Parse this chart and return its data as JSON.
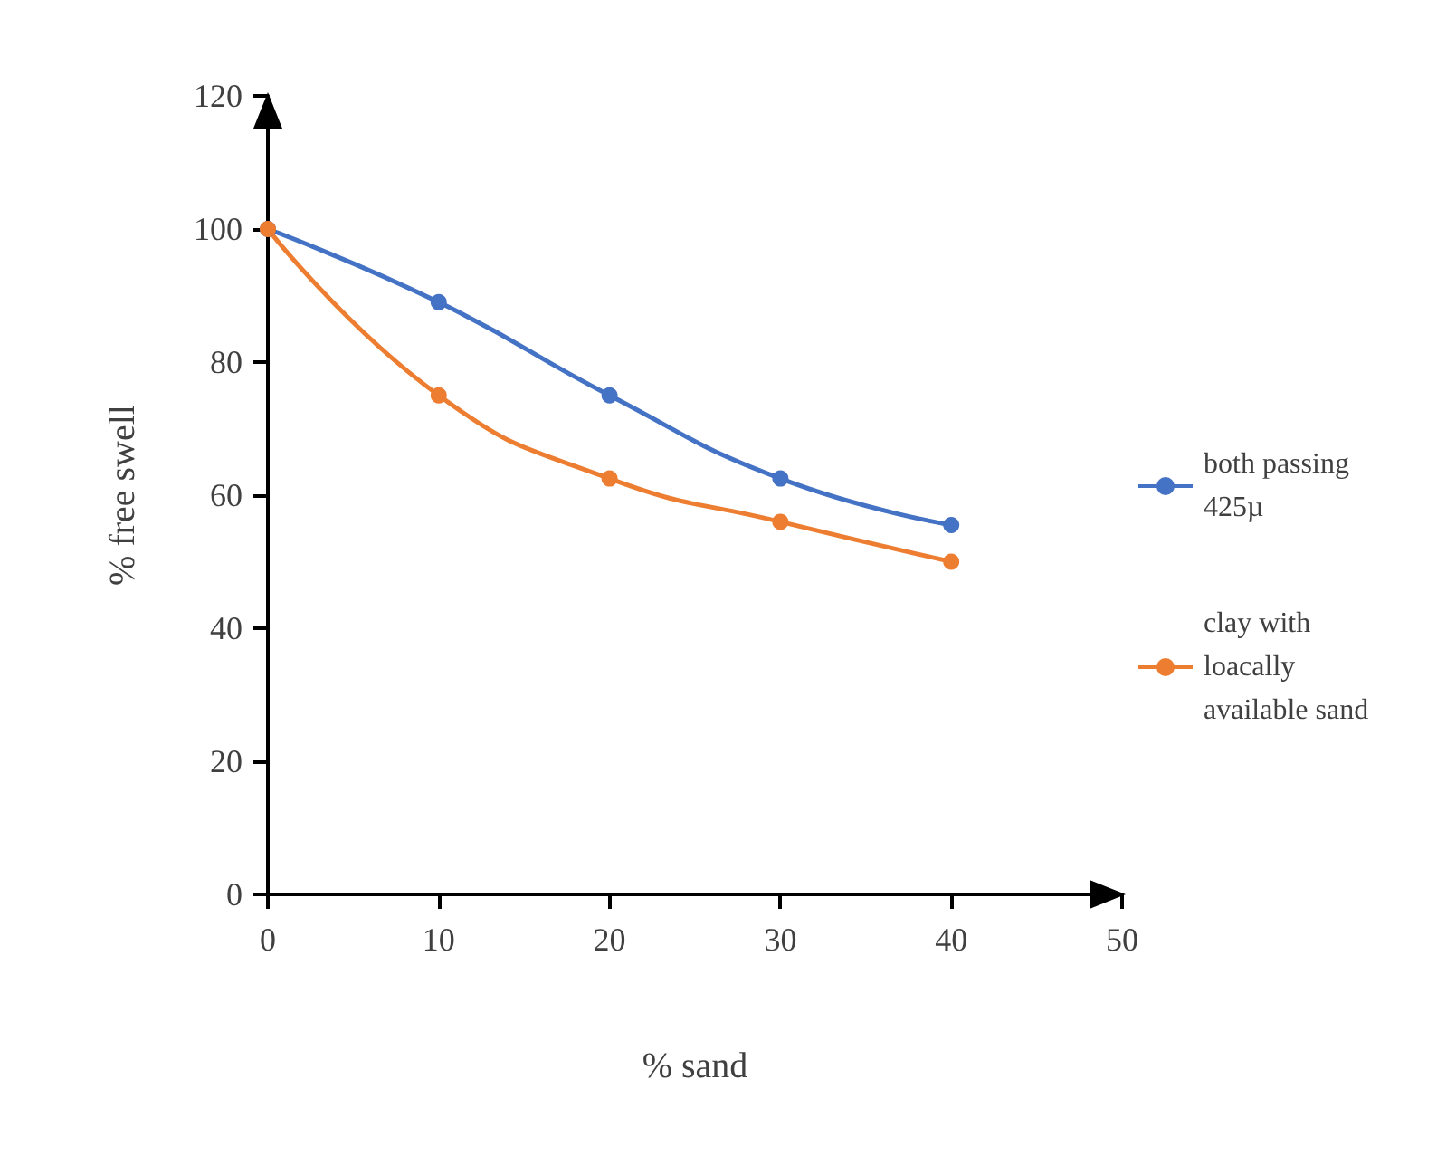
{
  "chart_data": {
    "type": "line",
    "xlabel": "% sand",
    "ylabel": "% free swell",
    "x": [
      0,
      10,
      20,
      30,
      40
    ],
    "series": [
      {
        "name": "both passing 425µ",
        "color": "#4472c4",
        "values": [
          100,
          89,
          75,
          62.5,
          55.5
        ]
      },
      {
        "name": "clay with loacally available sand",
        "color": "#ed7d31",
        "values": [
          100,
          75,
          62.5,
          56,
          50
        ]
      }
    ],
    "xlim": [
      0,
      50
    ],
    "xticks": [
      0,
      10,
      20,
      30,
      40,
      50
    ],
    "ylim": [
      0,
      120
    ],
    "yticks": [
      0,
      20,
      40,
      60,
      80,
      100,
      120
    ],
    "grid": false,
    "legend": "right",
    "marker": "circle",
    "line_style": "solid"
  }
}
